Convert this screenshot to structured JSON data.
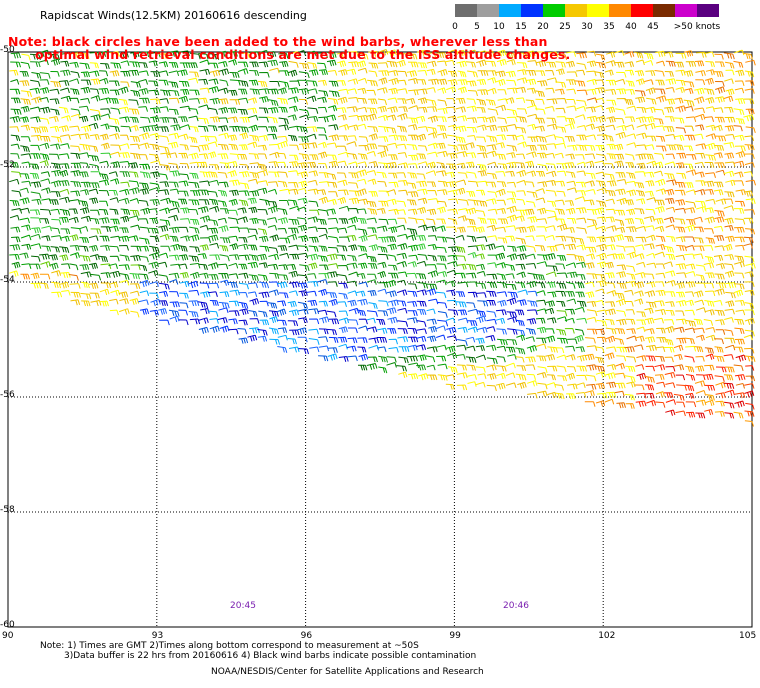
{
  "title": "Rapidscat Winds(12.5KM) 20160616 descending",
  "note": {
    "line1": "Note: black circles have been added to the wind barbs, wherever less than",
    "line2": "optimal wind retrieval conditions are met due to the ISS altitude changes."
  },
  "legend": {
    "labels": [
      "0",
      "5",
      "10",
      "15",
      "20",
      "25",
      "30",
      "35",
      "40",
      "45",
      ">50 knots"
    ],
    "colors": [
      "#6e6e6e",
      "#9e9e9e",
      "#00aaff",
      "#0033ff",
      "#00cc00",
      "#f5c800",
      "#ffff00",
      "#ff8800",
      "#ff0000",
      "#7a2a00",
      "#cc00cc",
      "#5a0080"
    ]
  },
  "lat_labels": [
    "-50",
    "-52",
    "-54",
    "-56",
    "-58",
    "-60"
  ],
  "lon_labels": [
    "90",
    "93",
    "96",
    "99",
    "102",
    "105"
  ],
  "times": [
    "20:45",
    "20:46"
  ],
  "footer": {
    "line1": "Note: 1) Times are GMT 2)Times along bottom correspond to measurement at ~50S",
    "line2": "3)Data buffer is 22 hrs from 20160616 4) Black wind barbs indicate possible contamination",
    "line3": "NOAA/NESDIS/Center for Satellite Applications and Research"
  },
  "map_data": {
    "lon_range": [
      90,
      105
    ],
    "lat_range": [
      -60,
      -50
    ],
    "wind_zones": [
      {
        "name": "green band",
        "color": "#008800"
      },
      {
        "name": "yellow field",
        "color": "#f5c800"
      },
      {
        "name": "blue core",
        "color": "#0033ff"
      },
      {
        "name": "orange south-east",
        "color": "#ff8800"
      }
    ]
  }
}
